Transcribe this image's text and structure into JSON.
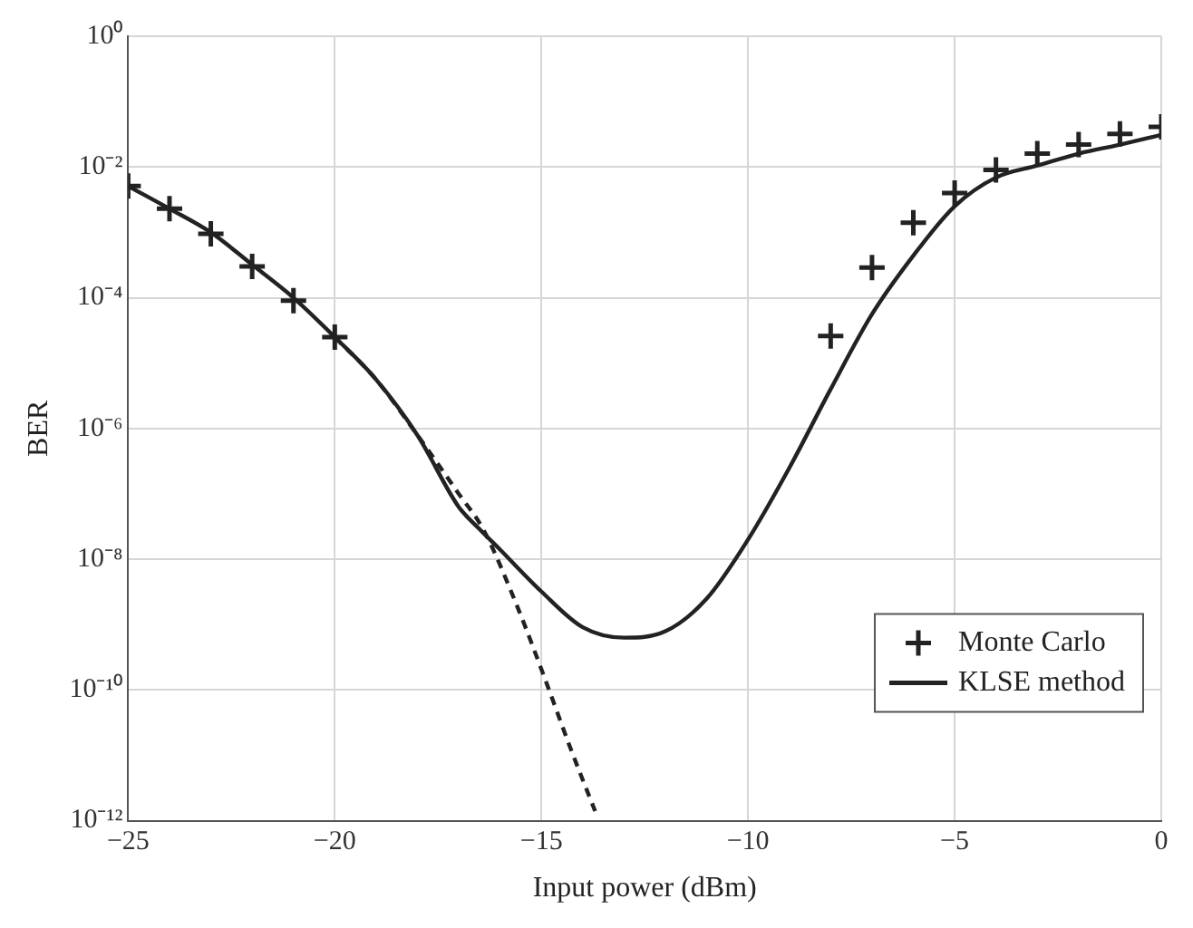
{
  "chart_data": {
    "type": "line",
    "xlabel": "Input power (dBm)",
    "ylabel": "BER",
    "log": "y",
    "grid": true,
    "legend": "bottom right",
    "xlim": [
      -25,
      0
    ],
    "xticks": [
      -25,
      -20,
      -15,
      -10,
      -5,
      0
    ],
    "ylim": [
      1e-12,
      1
    ],
    "yticks": [
      {
        "value": 1e-12,
        "label": "10⁻¹²"
      },
      {
        "value": 1e-10,
        "label": "10⁻¹⁰"
      },
      {
        "value": 1e-08,
        "label": "10⁻⁸"
      },
      {
        "value": 1e-06,
        "label": "10⁻⁶"
      },
      {
        "value": 0.0001,
        "label": "10⁻⁴"
      },
      {
        "value": 0.01,
        "label": "10⁻²"
      },
      {
        "value": 1,
        "label": "10⁰"
      }
    ],
    "series": [
      {
        "name": "Monte Carlo",
        "type": "scatter",
        "marker": "cross",
        "color": "#222222",
        "x": [
          -25,
          -24,
          -23,
          -22,
          -21,
          -20,
          -8,
          -7,
          -6,
          -5,
          -4,
          -3,
          -2,
          -1,
          0
        ],
        "values": [
          0.0051,
          0.0023,
          0.00095,
          0.0003,
          9e-05,
          2.5e-05,
          2.6e-05,
          0.00029,
          0.0014,
          0.004,
          0.009,
          0.016,
          0.022,
          0.032,
          0.041
        ]
      },
      {
        "name": "KLSE method",
        "type": "line",
        "marker": "none",
        "line_style": "solid",
        "color": "#222222",
        "x": [
          -25,
          -24,
          -23,
          -22,
          -21,
          -20,
          -19,
          -18,
          -17,
          -16.5,
          -16,
          -15,
          -14,
          -13,
          -12,
          -11,
          -10,
          -9,
          -8,
          -7,
          -6,
          -5,
          -4,
          -3,
          -2,
          -1,
          0
        ],
        "values": [
          0.0051,
          0.0023,
          0.001,
          0.00032,
          0.0001,
          2.5e-05,
          5.6e-06,
          7.9e-07,
          6.3e-08,
          2.9e-08,
          1.4e-08,
          3.2e-09,
          9.1e-10,
          6.3e-10,
          7.9e-10,
          2.5e-09,
          2e-08,
          2.5e-07,
          4e-06,
          5.6e-05,
          0.00044,
          0.0025,
          0.0069,
          0.0105,
          0.016,
          0.022,
          0.031
        ]
      },
      {
        "type": "line",
        "marker": "none",
        "line_style": "dashed",
        "color": "#222222",
        "x": [
          -20,
          -19,
          -18,
          -17,
          -16.4,
          -15.6,
          -14.9,
          -14.3,
          -13.7
        ],
        "values": [
          2.5e-05,
          5.6e-06,
          7.9e-07,
          1e-07,
          2.8e-08,
          2e-09,
          1.4e-10,
          1.3e-11,
          1.4e-12
        ]
      }
    ]
  }
}
